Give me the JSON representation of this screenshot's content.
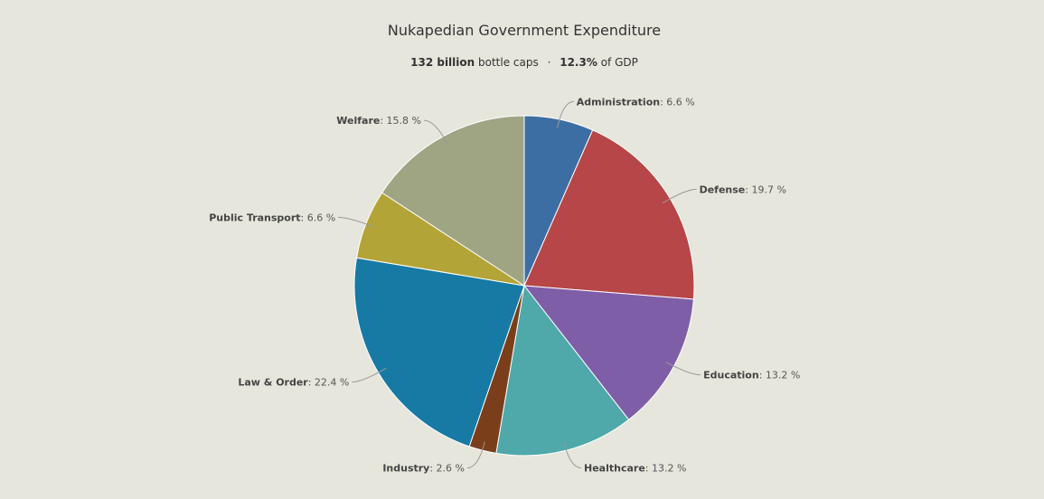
{
  "title": "Nukapedian Government Expenditure",
  "subtitle": {
    "amount": "132 billion",
    "amount_unit": "bottle caps",
    "separator": "·",
    "gdp_share": "12.3%",
    "gdp_suffix": "of GDP"
  },
  "chart_data": {
    "type": "pie",
    "title": "Nukapedian Government Expenditure",
    "value_suffix": " %",
    "start_angle_deg": 0,
    "slices": [
      {
        "name": "Administration",
        "value": 6.6,
        "label": "6.6 %",
        "color": "#3d6ea3"
      },
      {
        "name": "Defense",
        "value": 19.7,
        "label": "19.7 %",
        "color": "#b64647"
      },
      {
        "name": "Education",
        "value": 13.2,
        "label": "13.2 %",
        "color": "#7f5ea8"
      },
      {
        "name": "Healthcare",
        "value": 13.2,
        "label": "13.2 %",
        "color": "#4fa8aa"
      },
      {
        "name": "Industry",
        "value": 2.6,
        "label": "2.6 %",
        "color": "#7a3f1a"
      },
      {
        "name": "Law & Order",
        "value": 22.4,
        "label": "22.4 %",
        "color": "#167aa5"
      },
      {
        "name": "Public Transport",
        "value": 6.6,
        "label": "6.6 %",
        "color": "#b3a437"
      },
      {
        "name": "Welfare",
        "value": 15.8,
        "label": "15.8 %",
        "color": "#9fa583"
      }
    ]
  }
}
